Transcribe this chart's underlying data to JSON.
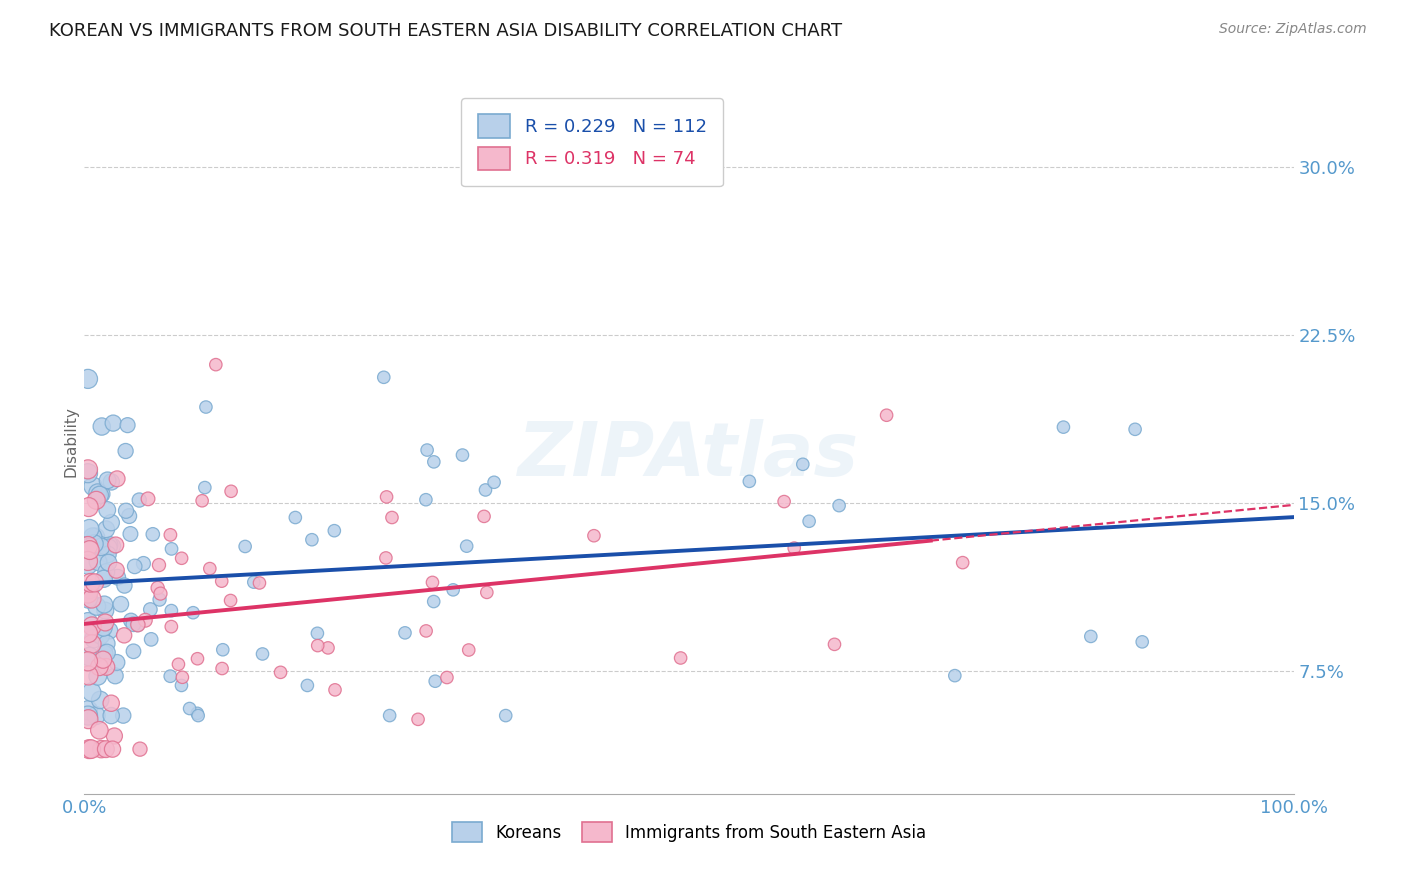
{
  "title": "KOREAN VS IMMIGRANTS FROM SOUTH EASTERN ASIA DISABILITY CORRELATION CHART",
  "source": "Source: ZipAtlas.com",
  "ylabel": "Disability",
  "xlim": [
    0.0,
    1.0
  ],
  "ylim": [
    0.02,
    0.335
  ],
  "yticks": [
    0.075,
    0.15,
    0.225,
    0.3
  ],
  "ytick_labels": [
    "7.5%",
    "15.0%",
    "22.5%",
    "30.0%"
  ],
  "xticks": [
    0.0,
    1.0
  ],
  "xtick_labels": [
    "0.0%",
    "100.0%"
  ],
  "watermark": "ZIPAtlas",
  "legend_R1": "0.229",
  "legend_N1": "112",
  "legend_R2": "0.319",
  "legend_N2": "74",
  "legend_bottom1": "Koreans",
  "legend_bottom2": "Immigrants from South Eastern Asia",
  "korean_color": "#b8d0ea",
  "korean_edge": "#7aaad0",
  "immigrant_color": "#f5b8cc",
  "immigrant_edge": "#e07090",
  "trend_blue": "#1a4faa",
  "trend_pink": "#dd3366",
  "grid_color": "#cccccc",
  "axis_color": "#5599cc",
  "title_color": "#1a1a1a",
  "source_color": "#888888",
  "bg_color": "#ffffff"
}
